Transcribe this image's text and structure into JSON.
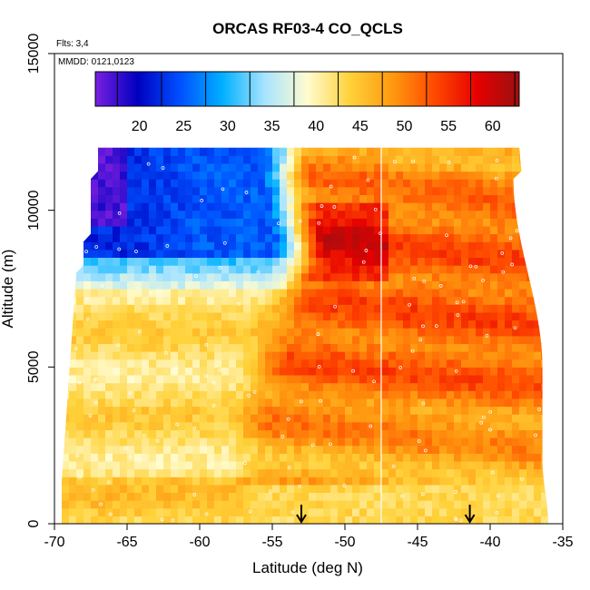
{
  "chart_data": {
    "type": "heatmap",
    "title": "ORCAS RF03-4 CO_QCLS",
    "xlabel": "Latitude (deg N)",
    "ylabel": "Altitude (m)",
    "xlim": [
      -70,
      -35
    ],
    "ylim": [
      0,
      15000
    ],
    "x_ticks": [
      "-70",
      "-65",
      "-60",
      "-55",
      "-50",
      "-45",
      "-40",
      "-35"
    ],
    "x_tick_values": [
      -70,
      -65,
      -60,
      -55,
      -50,
      -45,
      -40,
      -35
    ],
    "y_ticks": [
      "0",
      "5000",
      "10000",
      "15000"
    ],
    "y_tick_values": [
      0,
      5000,
      10000,
      15000
    ],
    "annotations": {
      "flights": "Flts: 3,4",
      "dates": "MMDD: 0121,0123"
    },
    "colorbar": {
      "min": 15,
      "max": 63,
      "ticks": [
        "20",
        "25",
        "30",
        "35",
        "40",
        "45",
        "50",
        "55",
        "60"
      ],
      "tick_values": [
        20,
        25,
        30,
        35,
        40,
        45,
        50,
        55,
        60
      ],
      "colors": [
        "#7a1fe0",
        "#0000c0",
        "#0050ff",
        "#00b0ff",
        "#a8e4ff",
        "#fffcd0",
        "#ffd23a",
        "#ff9a10",
        "#ff4a00",
        "#e60000",
        "#9a1010"
      ]
    },
    "arrows_latitude": [
      -53,
      -41.4
    ],
    "divider_latitude": -47.5,
    "field_extent": {
      "top_altitude": 12000,
      "lat_min": -69.5,
      "lat_max": -36
    }
  }
}
